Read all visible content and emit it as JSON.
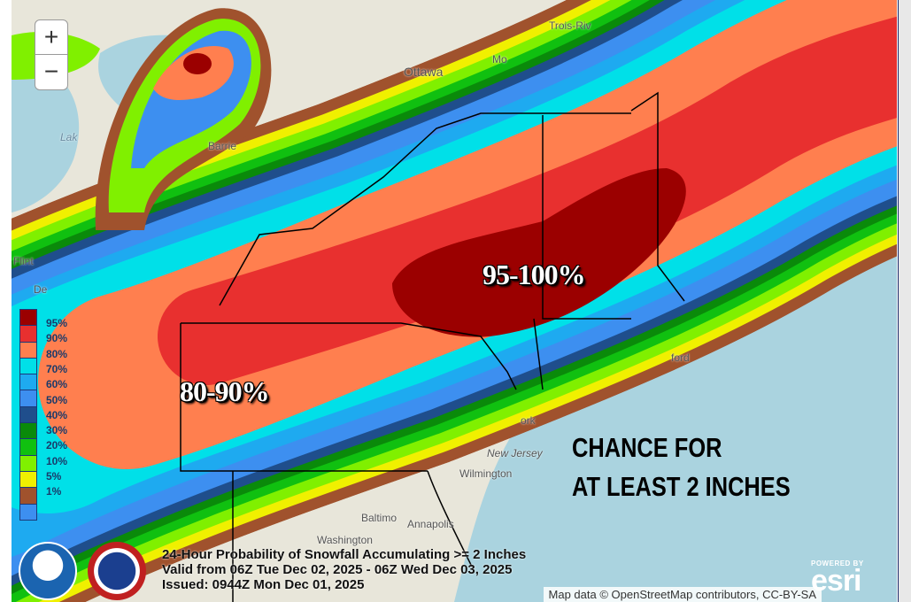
{
  "map": {
    "zoom_in": "+",
    "zoom_out": "−",
    "cities": [
      "Trois-Riv",
      "Ottawa",
      "Mo",
      "Barrie",
      "Lak",
      "Flint",
      "De",
      "ork",
      "New Jersey",
      "Wilmington",
      "Baltimo",
      "Washington",
      "Annapolis",
      "ford"
    ],
    "annotations": {
      "high": "95-100%",
      "mid": "80-90%",
      "chance_line1": "CHANCE FOR",
      "chance_line2": "AT LEAST 2 INCHES"
    },
    "title_lines": [
      "24-Hour Probability of Snowfall Accumulating >= 2 Inches",
      "Valid from 06Z Tue Dec 02, 2025 - 06Z Wed Dec 03, 2025",
      "Issued: 0944Z Mon Dec 01, 2025"
    ],
    "attribution": "Map data © OpenStreetMap contributors, CC-BY-SA",
    "esri_powered": "POWERED BY",
    "esri_logo": "esri",
    "logos": [
      "NOAA",
      "National Weather Service"
    ]
  },
  "legend": {
    "labels": [
      "95%",
      "90%",
      "80%",
      "70%",
      "60%",
      "50%",
      "40%",
      "30%",
      "20%",
      "10%",
      "5%",
      "1%"
    ],
    "colors": [
      "#9b0000",
      "#e8302f",
      "#ff7f4f",
      "#00e0e8",
      "#1eaaf0",
      "#3d8ff0",
      "#1f4e8c",
      "#0a8a0a",
      "#10c010",
      "#80f000",
      "#f0f000",
      "#a0522d",
      "#3d8ff0"
    ]
  }
}
